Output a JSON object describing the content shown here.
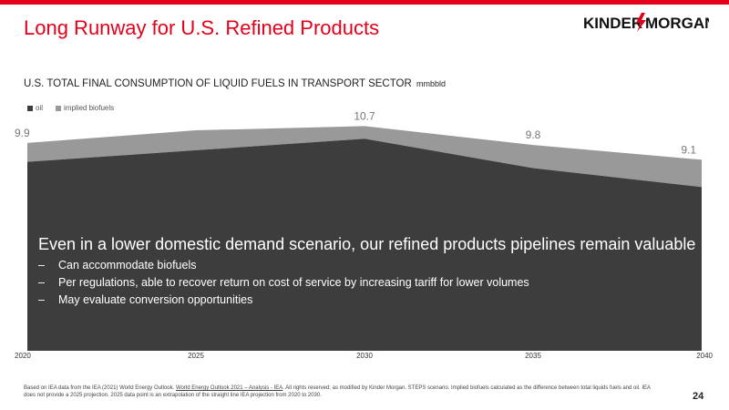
{
  "colors": {
    "accent": "#e3001b",
    "oil": "#3d3d3d",
    "biofuels": "#999999",
    "text": "#222222"
  },
  "slide": {
    "title": "Long Runway for U.S. Refined Products",
    "logo": {
      "left": "KINDER",
      "right": "MORGAN",
      "icon": "lightning-bolt-icon"
    },
    "page_number": "24"
  },
  "chart_data": {
    "type": "area",
    "title": "U.S. TOTAL FINAL CONSUMPTION OF LIQUID FUELS IN TRANSPORT SECTOR",
    "unit": "mmbbld",
    "x": [
      2020,
      2025,
      2030,
      2035,
      2040
    ],
    "series": [
      {
        "name": "oil",
        "values": [
          9.0,
          9.55,
          10.1,
          8.7,
          7.8
        ]
      },
      {
        "name": "implied biofuels",
        "values": [
          0.9,
          0.95,
          0.6,
          1.1,
          1.3
        ]
      }
    ],
    "stacked": true,
    "total_labels": [
      "9.9",
      "",
      "10.7",
      "9.8",
      "9.1"
    ],
    "ylim": [
      0,
      11.5
    ],
    "legend_position": "top-left",
    "grid": false
  },
  "overlay": {
    "headline": "Even in a lower domestic demand scenario, our refined products pipelines remain valuable",
    "dash": "–",
    "bullets": [
      "Can accommodate biofuels",
      "Per regulations, able to recover return on cost of service by increasing tariff for lower volumes",
      "May evaluate conversion opportunities"
    ]
  },
  "footnote": {
    "part1": "Based on IEA data from the IEA (2021) World Energy Outlook.",
    "link": "World Energy Outlook 2021 – Analysis - IEA",
    "part2": ". All rights reserved; as modified by Kinder Morgan. STEPS scenario. Implied biofuels calculated as the difference between total liquids fuels and oil. IEA does not provide a 2025 projection. 2025 data point is an extrapolation of the straight line IEA projection from 2020 to 2030."
  }
}
